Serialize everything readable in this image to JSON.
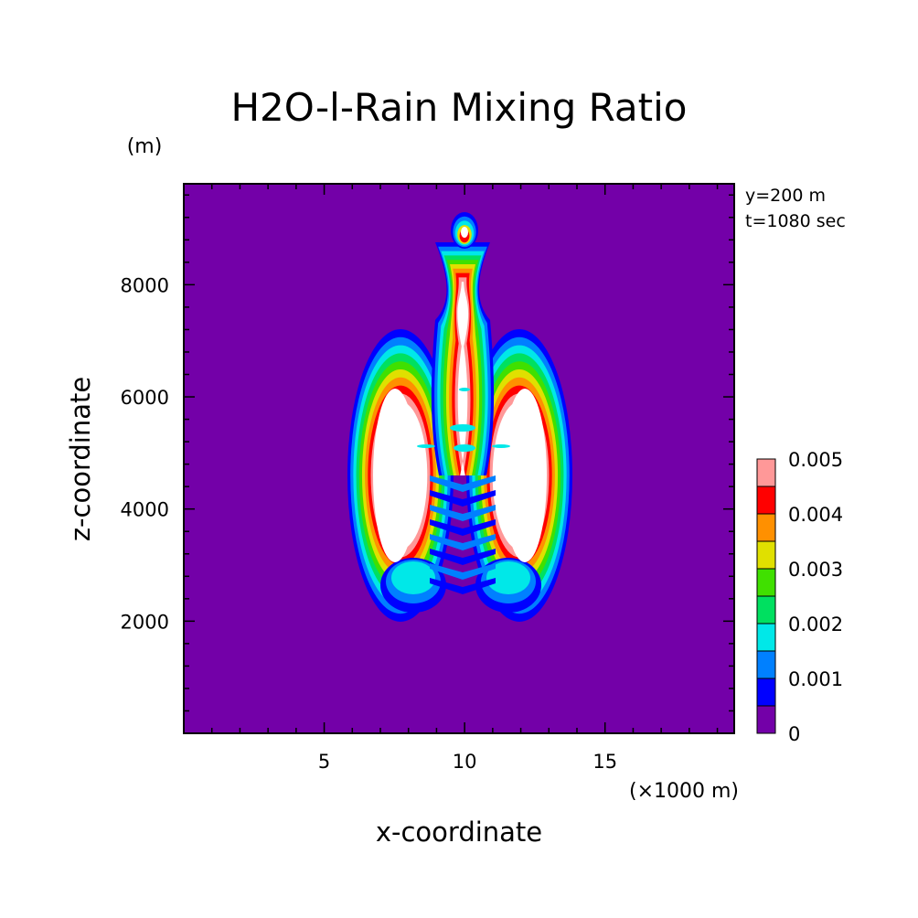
{
  "chart_data": {
    "type": "heatmap",
    "title": "H2O-l-Rain Mixing Ratio",
    "xlabel": "x-coordinate",
    "ylabel": "z-coordinate",
    "x_unit": "(×1000 m)",
    "y_unit": "(m)",
    "info": [
      "y=200 m",
      "t=1080 sec"
    ],
    "xlim": [
      0,
      19.6
    ],
    "ylim": [
      0,
      9800
    ],
    "x_ticks": [
      "5",
      "10",
      "15"
    ],
    "y_ticks": [
      "2000",
      "4000",
      "6000",
      "8000"
    ],
    "x_tick_values": [
      5,
      10,
      15
    ],
    "y_tick_values": [
      2000,
      4000,
      6000,
      8000
    ],
    "background_color": "#7300a8",
    "colorbar": {
      "levels": [
        0,
        0.0005,
        0.001,
        0.0015,
        0.002,
        0.0025,
        0.003,
        0.0035,
        0.004,
        0.0045,
        0.005
      ],
      "colors": [
        "#7300a8",
        "#0000ff",
        "#0080ff",
        "#00e8e8",
        "#00e060",
        "#40e000",
        "#e0e000",
        "#ff9000",
        "#ff0000",
        "#ff9898"
      ],
      "labels": [
        "0",
        "0.001",
        "0.002",
        "0.003",
        "0.004",
        "0.005"
      ]
    }
  }
}
